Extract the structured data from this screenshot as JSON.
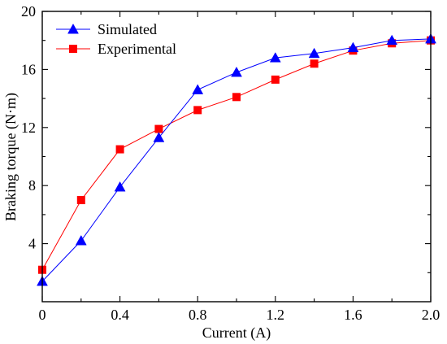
{
  "chart_data": {
    "type": "line",
    "xlabel": "Current (A)",
    "ylabel": "Braking torque (N·m)",
    "xlim": [
      0,
      2.0
    ],
    "ylim": [
      0,
      20
    ],
    "x_ticks": [
      "0",
      "0.4",
      "0.8",
      "1.2",
      "1.6",
      "2.0"
    ],
    "x_tick_values": [
      0,
      0.4,
      0.8,
      1.2,
      1.6,
      2.0
    ],
    "y_ticks": [
      "4",
      "8",
      "12",
      "16",
      "20"
    ],
    "y_tick_values": [
      4,
      8,
      12,
      16,
      20
    ],
    "grid": false,
    "legend_position": "top-left",
    "x": [
      0,
      0.2,
      0.4,
      0.6,
      0.8,
      1.0,
      1.2,
      1.4,
      1.6,
      1.8,
      2.0
    ],
    "series": [
      {
        "name": "Simulated",
        "color": "#0000ff",
        "marker": "triangle",
        "values": [
          1.4,
          4.2,
          7.9,
          11.3,
          14.6,
          15.8,
          16.8,
          17.1,
          17.5,
          18.0,
          18.1
        ]
      },
      {
        "name": "Experimental",
        "color": "#ff0000",
        "marker": "square",
        "values": [
          2.2,
          7.0,
          10.5,
          11.9,
          13.2,
          14.1,
          15.3,
          16.4,
          17.3,
          17.8,
          18.0
        ]
      }
    ]
  }
}
